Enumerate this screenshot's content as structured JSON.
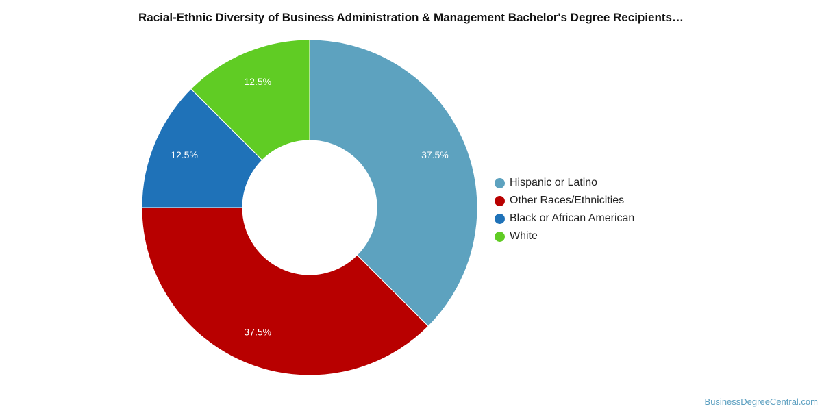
{
  "chart_data": {
    "type": "pie",
    "title": "Racial-Ethnic Diversity of Business Administration & Management Bachelor's Degree Recipients…",
    "donut": true,
    "series": [
      {
        "name": "Hispanic or Latino",
        "value": 37.5,
        "label": "37.5%",
        "color": "#5da2bf"
      },
      {
        "name": "Other Races/Ethnicities",
        "value": 37.5,
        "label": "37.5%",
        "color": "#b80000"
      },
      {
        "name": "Black or African American",
        "value": 12.5,
        "label": "12.5%",
        "color": "#1f72b8"
      },
      {
        "name": "White",
        "value": 12.5,
        "label": "12.5%",
        "color": "#60cc24"
      }
    ],
    "legend_position": "right"
  },
  "source_text": "BusinessDegreeCentral.com"
}
